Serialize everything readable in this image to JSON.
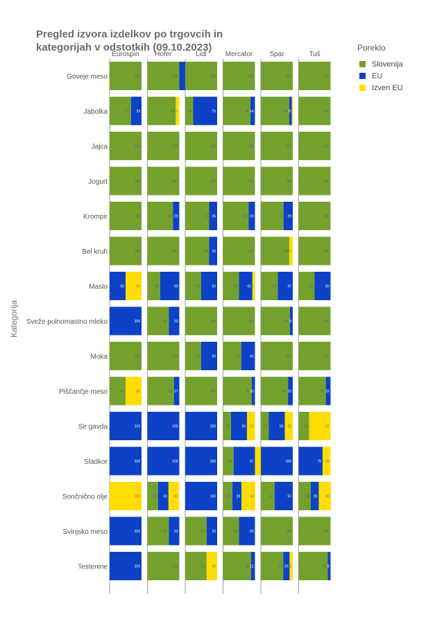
{
  "title": "Pregled izvora izdelkov po trgovcih in kategorijah v odstotkih (09.10.2023)",
  "colors": {
    "Slovenija": "#74a12e",
    "EU": "#0d42c6",
    "Izven EU": "#ffdd00"
  },
  "chart_data": {
    "type": "bar",
    "stacked": true,
    "orientation": "horizontal",
    "ylabel": "Kategorija",
    "legend_title": "Poreklo",
    "legend_position": "right",
    "xlim": [
      0,
      100
    ],
    "stores": [
      "Eurospin",
      "Hofer",
      "Lidl",
      "Mercator",
      "Spar",
      "Tuš"
    ],
    "categories": [
      "Goveje meso",
      "Jabolka",
      "Jajca",
      "Jogurt",
      "Krompir",
      "Bel kruh",
      "Maslo",
      "Sveže polnomastno mleko",
      "Moka",
      "Piščančje meso",
      "Sir gavda",
      "Sladkor",
      "Sončnično olje",
      "Svinjsko meso",
      "Testenine"
    ],
    "series": [
      {
        "name": "Slovenija",
        "values": [
          [
            100,
            100,
            100,
            100,
            100,
            100
          ],
          [
            67,
            89,
            25,
            86,
            89,
            100
          ],
          [
            100,
            100,
            100,
            100,
            100,
            100
          ],
          [
            100,
            100,
            100,
            100,
            100,
            100
          ],
          [
            100,
            80,
            75,
            80,
            71,
            100
          ],
          [
            100,
            100,
            75,
            100,
            89,
            100
          ],
          [
            0,
            40,
            50,
            50,
            53,
            50
          ],
          [
            0,
            67,
            100,
            100,
            91,
            100
          ],
          [
            100,
            100,
            50,
            57,
            100,
            100
          ],
          [
            50,
            83,
            100,
            90,
            85,
            85
          ],
          [
            0,
            0,
            0,
            25,
            25,
            33
          ],
          [
            0,
            0,
            0,
            33,
            0,
            0
          ],
          [
            0,
            33,
            0,
            29,
            43,
            38
          ],
          [
            0,
            67,
            67,
            50,
            100,
            100
          ],
          [
            0,
            100,
            67,
            88,
            70,
            91
          ]
        ]
      },
      {
        "name": "EU",
        "values": [
          [
            0,
            100,
            0,
            0,
            0,
            0
          ],
          [
            33,
            0,
            75,
            14,
            8,
            0
          ],
          [
            0,
            0,
            0,
            0,
            0,
            0
          ],
          [
            0,
            0,
            0,
            0,
            0,
            0
          ],
          [
            0,
            20,
            25,
            20,
            29,
            0
          ],
          [
            0,
            0,
            25,
            0,
            0,
            0
          ],
          [
            50,
            60,
            50,
            42,
            47,
            50
          ],
          [
            100,
            33,
            0,
            0,
            9,
            0
          ],
          [
            0,
            0,
            50,
            43,
            0,
            0
          ],
          [
            0,
            17,
            0,
            10,
            15,
            15
          ],
          [
            100,
            100,
            100,
            50,
            50,
            0
          ],
          [
            100,
            100,
            100,
            67,
            100,
            75
          ],
          [
            0,
            33,
            100,
            29,
            57,
            25
          ],
          [
            100,
            33,
            33,
            50,
            0,
            0
          ],
          [
            100,
            0,
            0,
            12,
            20,
            9
          ]
        ]
      },
      {
        "name": "Izven EU",
        "values": [
          [
            0,
            0,
            0,
            0,
            0,
            0
          ],
          [
            0,
            11,
            0,
            0,
            3,
            0
          ],
          [
            0,
            0,
            0,
            0,
            0,
            0
          ],
          [
            0,
            0,
            0,
            0,
            0,
            0
          ],
          [
            0,
            0,
            0,
            0,
            0,
            0
          ],
          [
            0,
            0,
            0,
            0,
            11,
            0
          ],
          [
            50,
            0,
            0,
            8,
            0,
            0
          ],
          [
            0,
            0,
            0,
            0,
            0,
            0
          ],
          [
            0,
            0,
            0,
            0,
            0,
            0
          ],
          [
            50,
            0,
            0,
            0,
            0,
            0
          ],
          [
            0,
            0,
            0,
            25,
            25,
            67
          ],
          [
            0,
            0,
            0,
            33,
            0,
            25
          ],
          [
            100,
            33,
            0,
            43,
            0,
            38
          ],
          [
            0,
            0,
            0,
            0,
            0,
            0
          ],
          [
            0,
            0,
            33,
            0,
            10,
            0
          ]
        ]
      }
    ]
  }
}
